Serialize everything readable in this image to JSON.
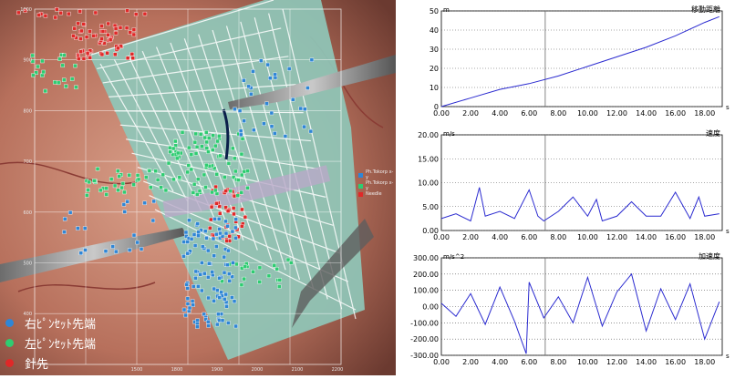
{
  "legend": {
    "items": [
      {
        "label": "右ﾋﾟﾝｾｯﾄ先端",
        "color": "#2f86d6"
      },
      {
        "label": "左ﾋﾟﾝｾｯﾄ先端",
        "color": "#2ecc71"
      },
      {
        "label": "針先",
        "color": "#e02828"
      }
    ]
  },
  "image_axes": {
    "y_ticks": [
      "1000",
      "900",
      "800",
      "700",
      "600",
      "500",
      "400"
    ],
    "x_ticks": [
      "1500",
      "1800",
      "1900",
      "2000",
      "2100",
      "2200"
    ]
  },
  "plot_legend": {
    "items": [
      "Ph.Tokorp x-y",
      "Ph.Tokorp x-y",
      "Needle"
    ]
  },
  "chart_data": [
    {
      "type": "line",
      "title": "移動距離",
      "ylabel": "m",
      "xlabel": "s",
      "xlim": [
        0,
        19.2
      ],
      "ylim": [
        0,
        50
      ],
      "x_ticks": [
        "0.00",
        "2.00",
        "4.00",
        "6.00",
        "8.00",
        "10.00",
        "12.00",
        "14.00",
        "16.00",
        "18.00"
      ],
      "y_ticks": [
        "0",
        "10",
        "20",
        "30",
        "40",
        "50"
      ],
      "cursor_x": 7.1,
      "series": [
        {
          "x": [
            0,
            2,
            4,
            6,
            8,
            10,
            12,
            14,
            16,
            18,
            19
          ],
          "y": [
            0,
            4.5,
            9,
            12,
            16,
            21,
            26,
            31,
            37,
            44,
            47
          ]
        }
      ]
    },
    {
      "type": "line",
      "title": "速度",
      "ylabel": "m/s",
      "xlabel": "s",
      "xlim": [
        0,
        19.2
      ],
      "ylim": [
        0,
        20
      ],
      "x_ticks": [
        "0.00",
        "2.00",
        "4.00",
        "6.00",
        "8.00",
        "10.00",
        "12.00",
        "14.00",
        "16.00",
        "18.00"
      ],
      "y_ticks": [
        "0.00",
        "5.00",
        "10.00",
        "15.00",
        "20.00"
      ],
      "cursor_x": 7.1,
      "series": [
        {
          "x": [
            0,
            1,
            2,
            2.6,
            3,
            4,
            5,
            6,
            6.6,
            7,
            8,
            9,
            10,
            10.6,
            11,
            12,
            13,
            14,
            15,
            16,
            17,
            17.6,
            18,
            19
          ],
          "y": [
            2.5,
            3.5,
            2,
            9,
            3,
            4,
            2.5,
            8.5,
            3,
            2,
            4,
            7,
            3,
            6.5,
            2,
            3,
            6,
            3,
            3,
            8,
            2.5,
            7,
            3,
            3.5
          ]
        }
      ]
    },
    {
      "type": "line",
      "title": "加速度",
      "ylabel": "m/s^2",
      "xlabel": "s",
      "xlim": [
        0,
        19.2
      ],
      "ylim": [
        -300,
        300
      ],
      "x_ticks": [
        "0.00",
        "2.00",
        "4.00",
        "6.00",
        "8.00",
        "10.00",
        "12.00",
        "14.00",
        "16.00",
        "18.00"
      ],
      "y_ticks": [
        "300.00",
        "200.00",
        "100.00",
        "0.00",
        "-100.00",
        "-200.00",
        "-300.00"
      ],
      "cursor_x": 7.1,
      "series": [
        {
          "x": [
            0,
            1,
            2,
            3,
            4,
            5,
            5.8,
            6,
            7,
            8,
            9,
            10,
            11,
            12,
            13,
            14,
            15,
            16,
            17,
            18,
            19
          ],
          "y": [
            20,
            -60,
            80,
            -110,
            120,
            -90,
            -290,
            150,
            -70,
            60,
            -100,
            180,
            -120,
            90,
            200,
            -150,
            110,
            -80,
            140,
            -200,
            30
          ]
        }
      ]
    }
  ]
}
